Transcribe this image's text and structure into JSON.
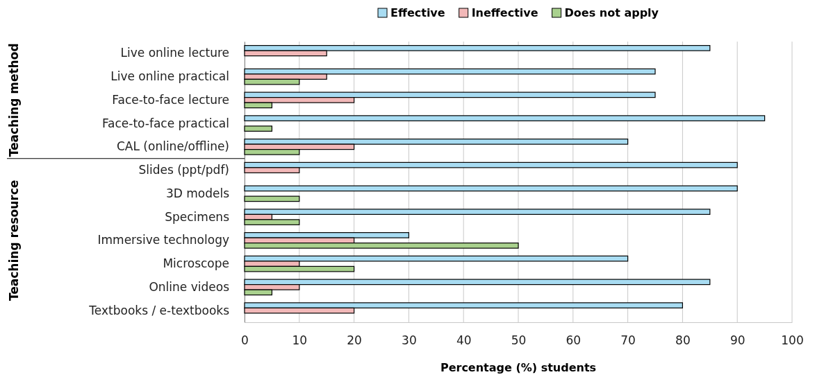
{
  "chart_data": {
    "type": "bar",
    "orientation": "horizontal",
    "xlabel": "Percentage (%) students",
    "categories": [
      "Live online lecture",
      "Live online practical",
      "Face-to-face lecture",
      "Face-to-face practical",
      "CAL (online/offline)",
      "Slides (ppt/pdf)",
      "3D models",
      "Specimens",
      "Immersive technology",
      "Microscope",
      "Online videos",
      "Textbooks / e-textbooks"
    ],
    "series": [
      {
        "name": "Effective",
        "color": "#a8dcf2",
        "values": [
          85,
          75,
          75,
          95,
          70,
          90,
          90,
          85,
          30,
          70,
          85,
          80
        ]
      },
      {
        "name": "Ineffective",
        "color": "#f2b8b8",
        "values": [
          15,
          15,
          20,
          0,
          20,
          10,
          0,
          5,
          20,
          10,
          10,
          20
        ]
      },
      {
        "name": "Does not apply",
        "color": "#a9d18e",
        "values": [
          0,
          10,
          5,
          5,
          10,
          0,
          10,
          10,
          50,
          20,
          5,
          0
        ]
      }
    ],
    "xlim": [
      0,
      100
    ],
    "xticks": [
      0,
      10,
      20,
      30,
      40,
      50,
      60,
      70,
      80,
      90,
      100
    ],
    "grid": "x",
    "legend": "top",
    "annotations": [
      "Teaching method",
      "Teaching resource"
    ]
  }
}
